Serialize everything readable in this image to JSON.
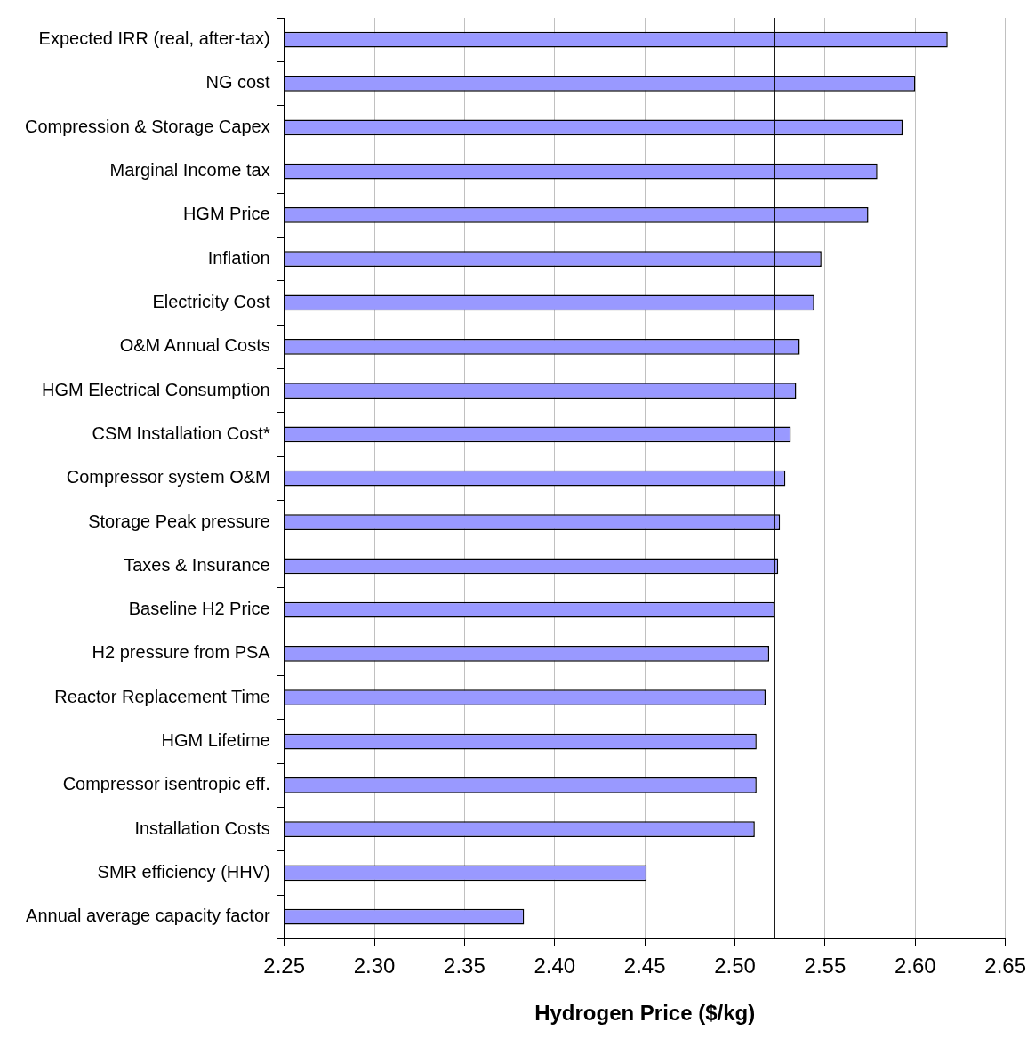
{
  "chart_data": {
    "type": "bar",
    "orientation": "horizontal",
    "xlabel": "Hydrogen Price ($/kg)",
    "categories": [
      "Expected IRR (real, after-tax)",
      "NG cost",
      "Compression & Storage Capex",
      "Marginal Income tax",
      "HGM Price",
      "Inflation",
      "Electricity Cost",
      "O&M Annual Costs",
      "HGM Electrical Consumption",
      "CSM Installation Cost*",
      "Compressor system O&M",
      "Storage Peak pressure",
      "Taxes & Insurance",
      "Baseline H2 Price",
      "H2 pressure from PSA",
      "Reactor Replacement Time",
      "HGM Lifetime",
      "Compressor isentropic eff.",
      "Installation Costs",
      "SMR efficiency (HHV)",
      "Annual average capacity factor"
    ],
    "values": [
      2.618,
      2.6,
      2.593,
      2.579,
      2.574,
      2.548,
      2.544,
      2.536,
      2.534,
      2.531,
      2.528,
      2.525,
      2.524,
      2.522,
      2.519,
      2.517,
      2.512,
      2.512,
      2.511,
      2.451,
      2.383
    ],
    "color": "#9999ff",
    "xlim": [
      2.25,
      2.65
    ],
    "xticks": [
      2.25,
      {
        "value": 2.3,
        "label": "2.30"
      },
      2.35,
      {
        "value": 2.4,
        "label": "2.40"
      },
      2.45,
      {
        "value": 2.5,
        "label": "2.50"
      },
      2.55,
      {
        "value": 2.6,
        "label": "2.60"
      },
      2.65
    ],
    "grid": "x",
    "legend": false,
    "ref_lines": [
      {
        "axis": "x",
        "value": 2.522,
        "label": null,
        "color": "#000000"
      }
    ]
  }
}
